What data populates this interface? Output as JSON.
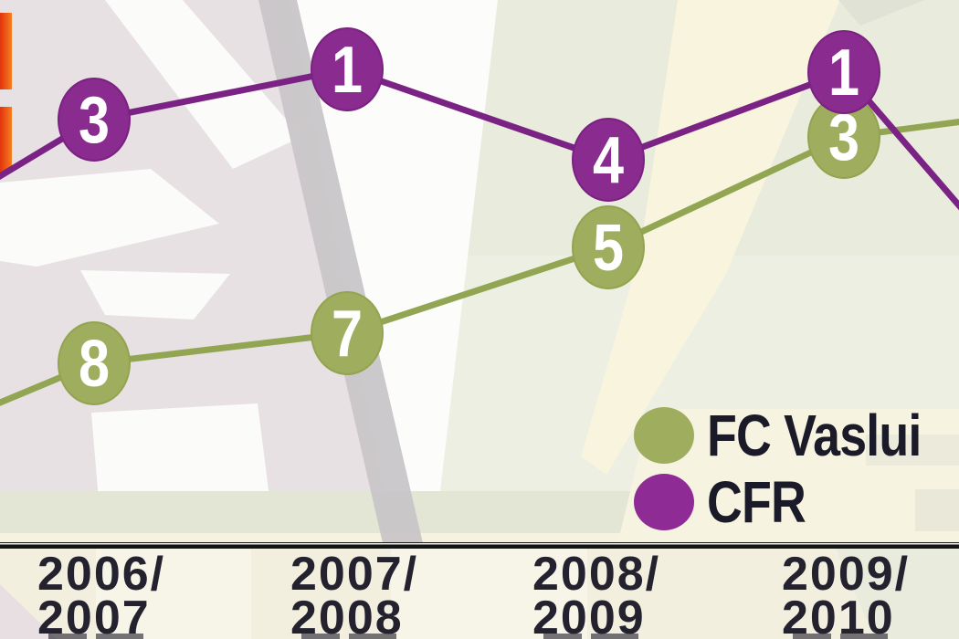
{
  "chart_data": {
    "type": "line",
    "categories": [
      "2006/2007",
      "2007/2008",
      "2008/2009",
      "2009/2010"
    ],
    "series": [
      {
        "name": "FC Vaslui",
        "color": "#9fad5e",
        "values": [
          8,
          7,
          5,
          3
        ]
      },
      {
        "name": "CFR",
        "color": "#8a2b8f",
        "values": [
          3,
          1,
          4,
          1
        ]
      }
    ],
    "value_meaning": "league finishing position, shown inside each data point (1 = best)",
    "y_axis_inverted": true,
    "ylim": [
      1,
      8
    ],
    "grid": false,
    "legend_position": "bottom-right",
    "notes": "both lines continue past the left and right image edges; no y-axis is drawn"
  },
  "legend": {
    "items": [
      {
        "label": "FC Vaslui",
        "color": "#9fad5e"
      },
      {
        "label": "CFR",
        "color": "#8a2b8f"
      }
    ]
  },
  "x_axis": {
    "labels": [
      {
        "line1": "2006/",
        "line2": "2007"
      },
      {
        "line1": "2007/",
        "line2": "2008"
      },
      {
        "line1": "2008/",
        "line2": "2009"
      },
      {
        "line1": "2009/",
        "line2": "2010"
      }
    ]
  },
  "colors": {
    "cfr_purple": "#8a2b8f",
    "cfr_line": "#7b2384",
    "vaslui_green": "#9fad5e",
    "vaslui_line": "#92a553",
    "axis_black": "#1a1a1a",
    "label_text": "#23222e",
    "legend_text": "#1b1a28",
    "red_bar": "#e5391a"
  }
}
